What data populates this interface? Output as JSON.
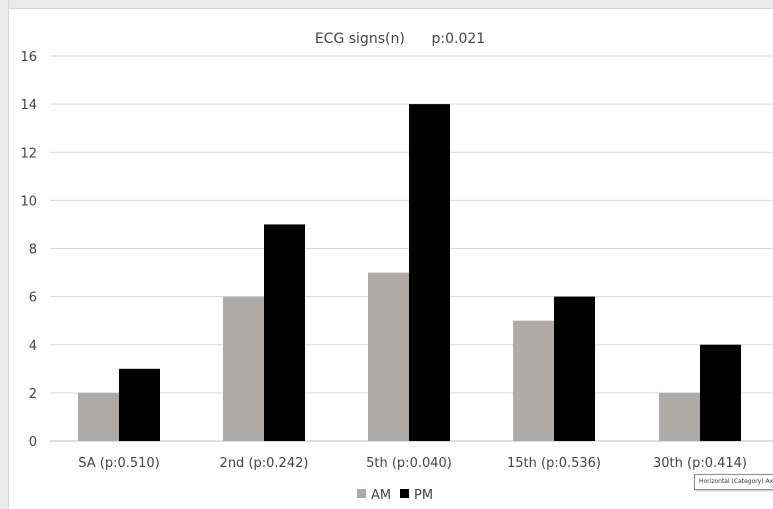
{
  "chart_data": {
    "type": "bar",
    "title": "ECG signs(n)      p:0.021",
    "categories": [
      "SA (p:0.510)",
      "2nd (p:0.242)",
      "5th (p:0.040)",
      "15th (p:0.536)",
      "30th (p:0.414)"
    ],
    "series": [
      {
        "name": "AM",
        "values": [
          2,
          6,
          7,
          5,
          2
        ],
        "color": "#aeaaaa"
      },
      {
        "name": "PM",
        "values": [
          3,
          9,
          14,
          6,
          4
        ],
        "color": "#000000"
      }
    ],
    "yticks": [
      "0",
      "2",
      "4",
      "6",
      "8",
      "10",
      "12",
      "14",
      "16"
    ],
    "ylim": [
      0,
      16
    ],
    "grid": true,
    "legend_position": "bottom",
    "xlabel": "",
    "ylabel": ""
  },
  "tooltip": {
    "text": "Horizontal (Category) Axis"
  },
  "colors": {
    "gridline": "#d9d9d9",
    "axis": "#bfbfbf",
    "text": "#444444"
  }
}
